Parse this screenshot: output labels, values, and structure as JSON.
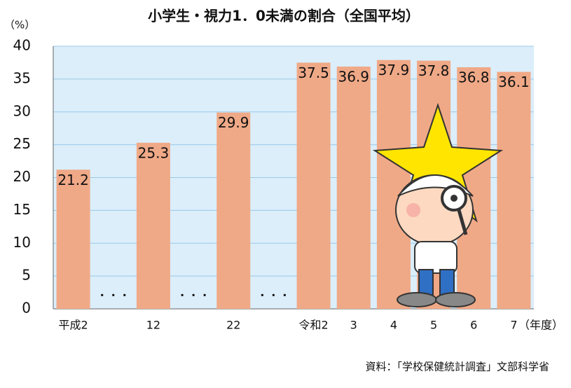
{
  "chart_data": {
    "type": "bar",
    "title": "小学生・視力1．0未満の割合（全国平均）",
    "y_unit": "（%）",
    "x_unit": "（年度）",
    "source": "資料：「学校保健統計調査」文部科学省",
    "categories": [
      "平成2",
      "・・・",
      "12",
      "・・・",
      "22",
      "・・・",
      "令和2",
      "3",
      "4",
      "5",
      "6",
      "7"
    ],
    "values": [
      21.2,
      null,
      25.3,
      null,
      29.9,
      null,
      37.5,
      36.9,
      37.9,
      37.8,
      36.8,
      36.1
    ],
    "color": "#f0a987",
    "ylim": [
      0,
      40
    ],
    "yticks": [
      0,
      5,
      10,
      15,
      20,
      25,
      30,
      35,
      40
    ],
    "grid": true
  }
}
